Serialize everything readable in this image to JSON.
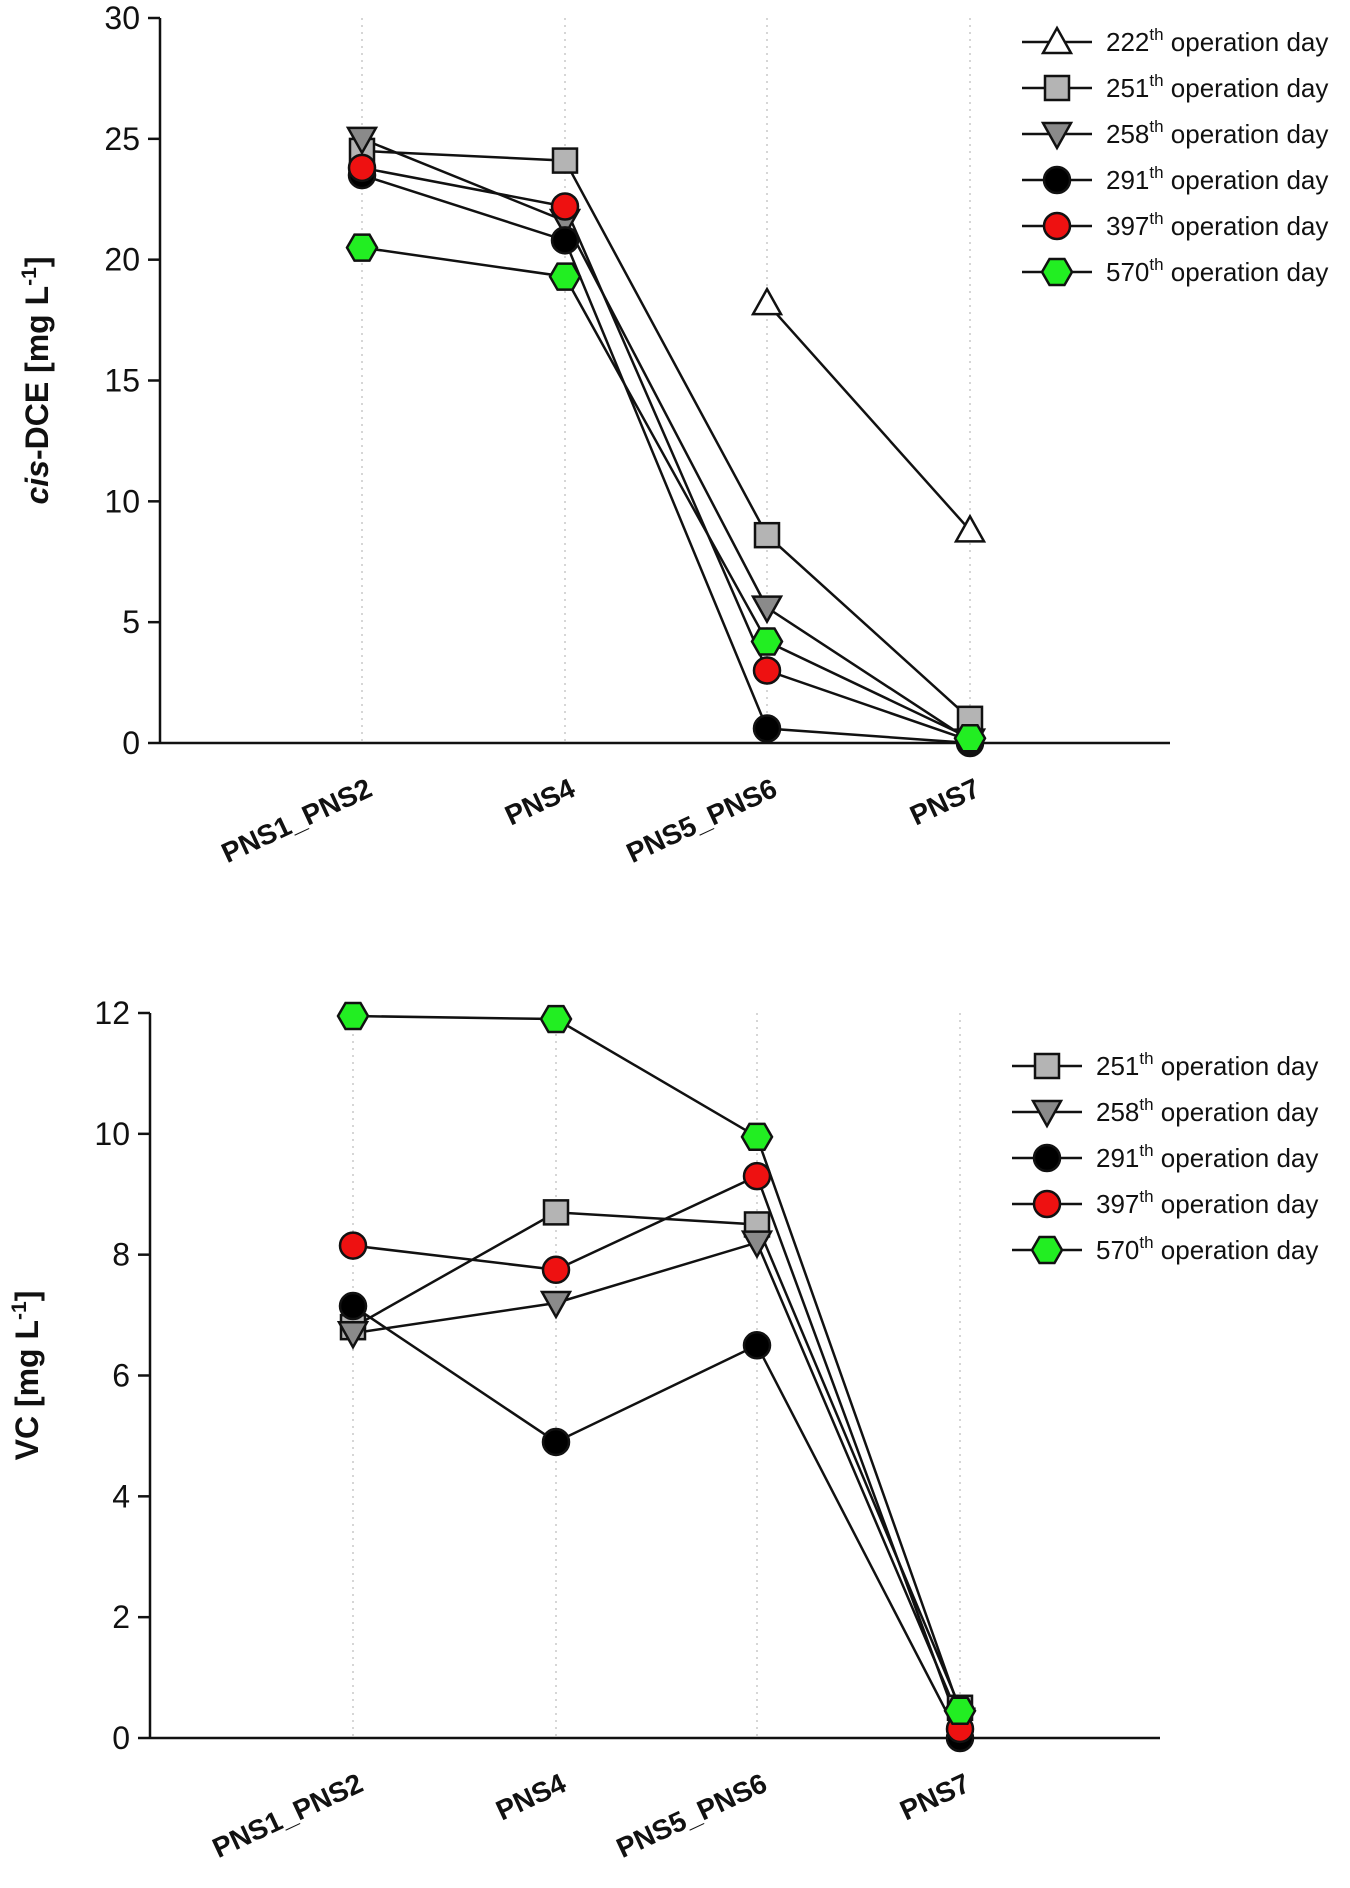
{
  "colors": {
    "white_marker": "#ffffff",
    "gray_marker": "#b4b4b4",
    "dark_gray_marker": "#8a8a8a",
    "black_marker": "#000000",
    "red_marker": "#ee1111",
    "green_marker": "#22ee22",
    "line": "#111111"
  },
  "chart_data": [
    {
      "type": "line",
      "title": "",
      "ylabel_prefix": "cis",
      "ylabel_rest": "-DCE [mg L",
      "ylabel_sup": "-1",
      "ylabel_end": "]",
      "xlabel": "",
      "categories": [
        "PNS1_PNS2",
        "PNS4",
        "PNS5_PNS6",
        "PNS7"
      ],
      "ylim": [
        0,
        30
      ],
      "yticks": [
        0,
        5,
        10,
        15,
        20,
        25,
        30
      ],
      "grid": "vertical dotted at categories",
      "legend_position": "top-right",
      "series": [
        {
          "name_num": "222",
          "name_sup": "th",
          "name_rest": " operation day",
          "marker": "triangle-up",
          "color_key": "white_marker",
          "values": [
            null,
            null,
            18.2,
            8.8
          ]
        },
        {
          "name_num": "251",
          "name_sup": "th",
          "name_rest": " operation day",
          "marker": "square",
          "color_key": "gray_marker",
          "values": [
            24.5,
            24.1,
            8.6,
            1.0
          ]
        },
        {
          "name_num": "258",
          "name_sup": "th",
          "name_rest": " operation day",
          "marker": "triangle-down",
          "color_key": "dark_gray_marker",
          "values": [
            25.0,
            21.6,
            5.6,
            0.1
          ]
        },
        {
          "name_num": "291",
          "name_sup": "th",
          "name_rest": " operation day",
          "marker": "circle",
          "color_key": "black_marker",
          "values": [
            23.5,
            20.8,
            0.6,
            0.0
          ]
        },
        {
          "name_num": "397",
          "name_sup": "th",
          "name_rest": " operation day",
          "marker": "circle",
          "color_key": "red_marker",
          "values": [
            23.8,
            22.2,
            3.0,
            0.1
          ]
        },
        {
          "name_num": "570",
          "name_sup": "th",
          "name_rest": " operation day",
          "marker": "hexagon",
          "color_key": "green_marker",
          "values": [
            20.5,
            19.3,
            4.2,
            0.2
          ]
        }
      ]
    },
    {
      "type": "line",
      "title": "",
      "ylabel_prefix": "",
      "ylabel_rest": "VC [mg L",
      "ylabel_sup": "-1",
      "ylabel_end": "]",
      "xlabel": "",
      "categories": [
        "PNS1_PNS2",
        "PNS4",
        "PNS5_PNS6",
        "PNS7"
      ],
      "ylim": [
        0,
        12
      ],
      "yticks": [
        0,
        2,
        4,
        6,
        8,
        10,
        12
      ],
      "grid": "vertical dotted at categories",
      "legend_position": "top-right",
      "series": [
        {
          "name_num": "251",
          "name_sup": "th",
          "name_rest": " operation day",
          "marker": "square",
          "color_key": "gray_marker",
          "values": [
            6.8,
            8.7,
            8.5,
            0.5
          ]
        },
        {
          "name_num": "258",
          "name_sup": "th",
          "name_rest": " operation day",
          "marker": "triangle-down",
          "color_key": "dark_gray_marker",
          "values": [
            6.7,
            7.2,
            8.2,
            0.3
          ]
        },
        {
          "name_num": "291",
          "name_sup": "th",
          "name_rest": " operation day",
          "marker": "circle",
          "color_key": "black_marker",
          "values": [
            7.15,
            4.9,
            6.5,
            0.0
          ]
        },
        {
          "name_num": "397",
          "name_sup": "th",
          "name_rest": " operation day",
          "marker": "circle",
          "color_key": "red_marker",
          "values": [
            8.15,
            7.75,
            9.3,
            0.15
          ]
        },
        {
          "name_num": "570",
          "name_sup": "th",
          "name_rest": " operation day",
          "marker": "hexagon",
          "color_key": "green_marker",
          "values": [
            11.95,
            11.9,
            9.95,
            0.45
          ]
        }
      ]
    }
  ]
}
